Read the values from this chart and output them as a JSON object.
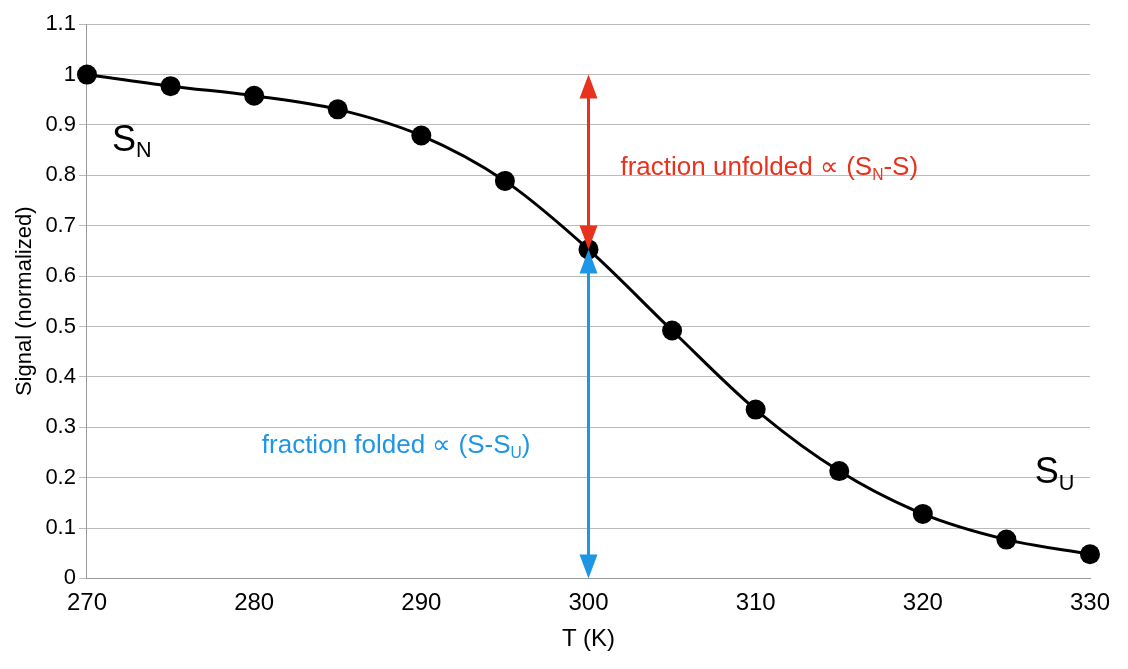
{
  "chart_data": {
    "type": "line",
    "xlabel": "T (K)",
    "ylabel": "Signal (normalized)",
    "x": [
      270,
      275,
      280,
      285,
      290,
      295,
      300,
      305,
      310,
      315,
      320,
      325,
      330
    ],
    "series": [
      {
        "color": "#000000",
        "values": [
          1.0,
          0.977,
          0.958,
          0.931,
          0.879,
          0.789,
          0.653,
          0.492,
          0.335,
          0.213,
          0.128,
          0.077,
          0.048
        ]
      }
    ],
    "xlim": [
      270,
      330
    ],
    "xticks": [
      270,
      280,
      290,
      300,
      310,
      320,
      330
    ],
    "ylim": [
      0,
      1.1
    ],
    "yticks": [
      0,
      0.1,
      0.2,
      0.3,
      0.4,
      0.5,
      0.6,
      0.7,
      0.8,
      0.9,
      1,
      1.1
    ],
    "grid": "y",
    "legend": false,
    "marker": "circle",
    "line_style": "solid",
    "annotations": [
      "S$_{N}$",
      "S$_{U}$",
      "fraction unfolded ∝ (S$_{N}$-S)",
      "fraction folded ∝ (S-S$_{U}$)"
    ]
  }
}
